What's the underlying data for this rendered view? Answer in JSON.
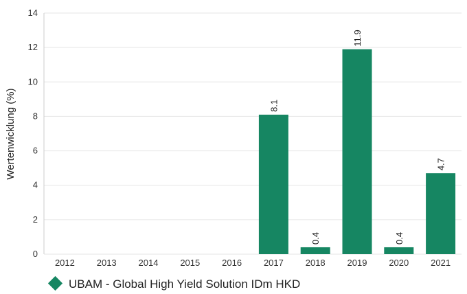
{
  "chart_data": {
    "type": "bar",
    "categories": [
      "2012",
      "2013",
      "2014",
      "2015",
      "2016",
      "2017",
      "2018",
      "2019",
      "2020",
      "2021"
    ],
    "series": [
      {
        "name": "UBAM - Global High Yield Solution IDm HKD",
        "values": [
          null,
          null,
          null,
          null,
          null,
          8.1,
          0.4,
          11.9,
          0.4,
          4.7
        ],
        "labels": [
          "",
          "",
          "",
          "",
          "",
          "8.1",
          "0.4",
          "11.9",
          "0.4",
          "4.7"
        ]
      }
    ],
    "ylabel": "Wertenwicklung (%)",
    "xlabel": "",
    "ylim": [
      0,
      14
    ],
    "yticks": [
      0,
      2,
      4,
      6,
      8,
      10,
      12,
      14
    ],
    "grid": true,
    "legend_position": "bottom-left",
    "colors": {
      "bar": "#168662",
      "grid": "#e6e6e6",
      "axis": "#cccccc"
    }
  }
}
